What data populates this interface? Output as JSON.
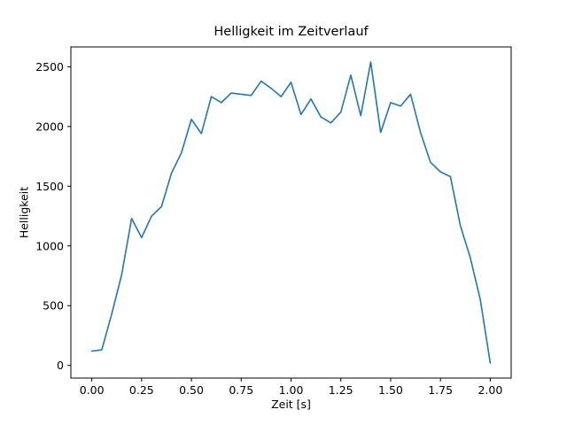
{
  "chart_data": {
    "type": "line",
    "title": "Helligkeit im Zeitverlauf",
    "xlabel": "Zeit [s]",
    "ylabel": "Helligkeit",
    "line_color": "#1f77b4",
    "background_color": "#ffffff",
    "grid": false,
    "legend": null,
    "xlim": [
      -0.105,
      2.105
    ],
    "ylim": [
      -106,
      2666
    ],
    "xticks": [
      0.0,
      0.25,
      0.5,
      0.75,
      1.0,
      1.25,
      1.5,
      1.75,
      2.0
    ],
    "xtick_labels": [
      "0.00",
      "0.25",
      "0.50",
      "0.75",
      "1.00",
      "1.25",
      "1.50",
      "1.75",
      "2.00"
    ],
    "yticks": [
      0,
      500,
      1000,
      1500,
      2000,
      2500
    ],
    "ytick_labels": [
      "0",
      "500",
      "1000",
      "1500",
      "2000",
      "2500"
    ],
    "x": [
      0.0,
      0.05,
      0.1,
      0.15,
      0.2,
      0.25,
      0.3,
      0.35,
      0.4,
      0.45,
      0.5,
      0.55,
      0.6,
      0.65,
      0.7,
      0.75,
      0.8,
      0.85,
      0.9,
      0.95,
      1.0,
      1.05,
      1.1,
      1.15,
      1.2,
      1.25,
      1.3,
      1.35,
      1.4,
      1.45,
      1.5,
      1.55,
      1.6,
      1.65,
      1.7,
      1.75,
      1.8,
      1.85,
      1.9,
      1.95,
      2.0
    ],
    "values": [
      120,
      130,
      430,
      760,
      1230,
      1070,
      1250,
      1330,
      1610,
      1780,
      2060,
      1940,
      2250,
      2200,
      2280,
      2270,
      2260,
      2380,
      2320,
      2250,
      2370,
      2100,
      2230,
      2080,
      2030,
      2120,
      2430,
      2090,
      2540,
      1950,
      2200,
      2170,
      2270,
      1950,
      1700,
      1620,
      1580,
      1170,
      900,
      550,
      20
    ]
  }
}
